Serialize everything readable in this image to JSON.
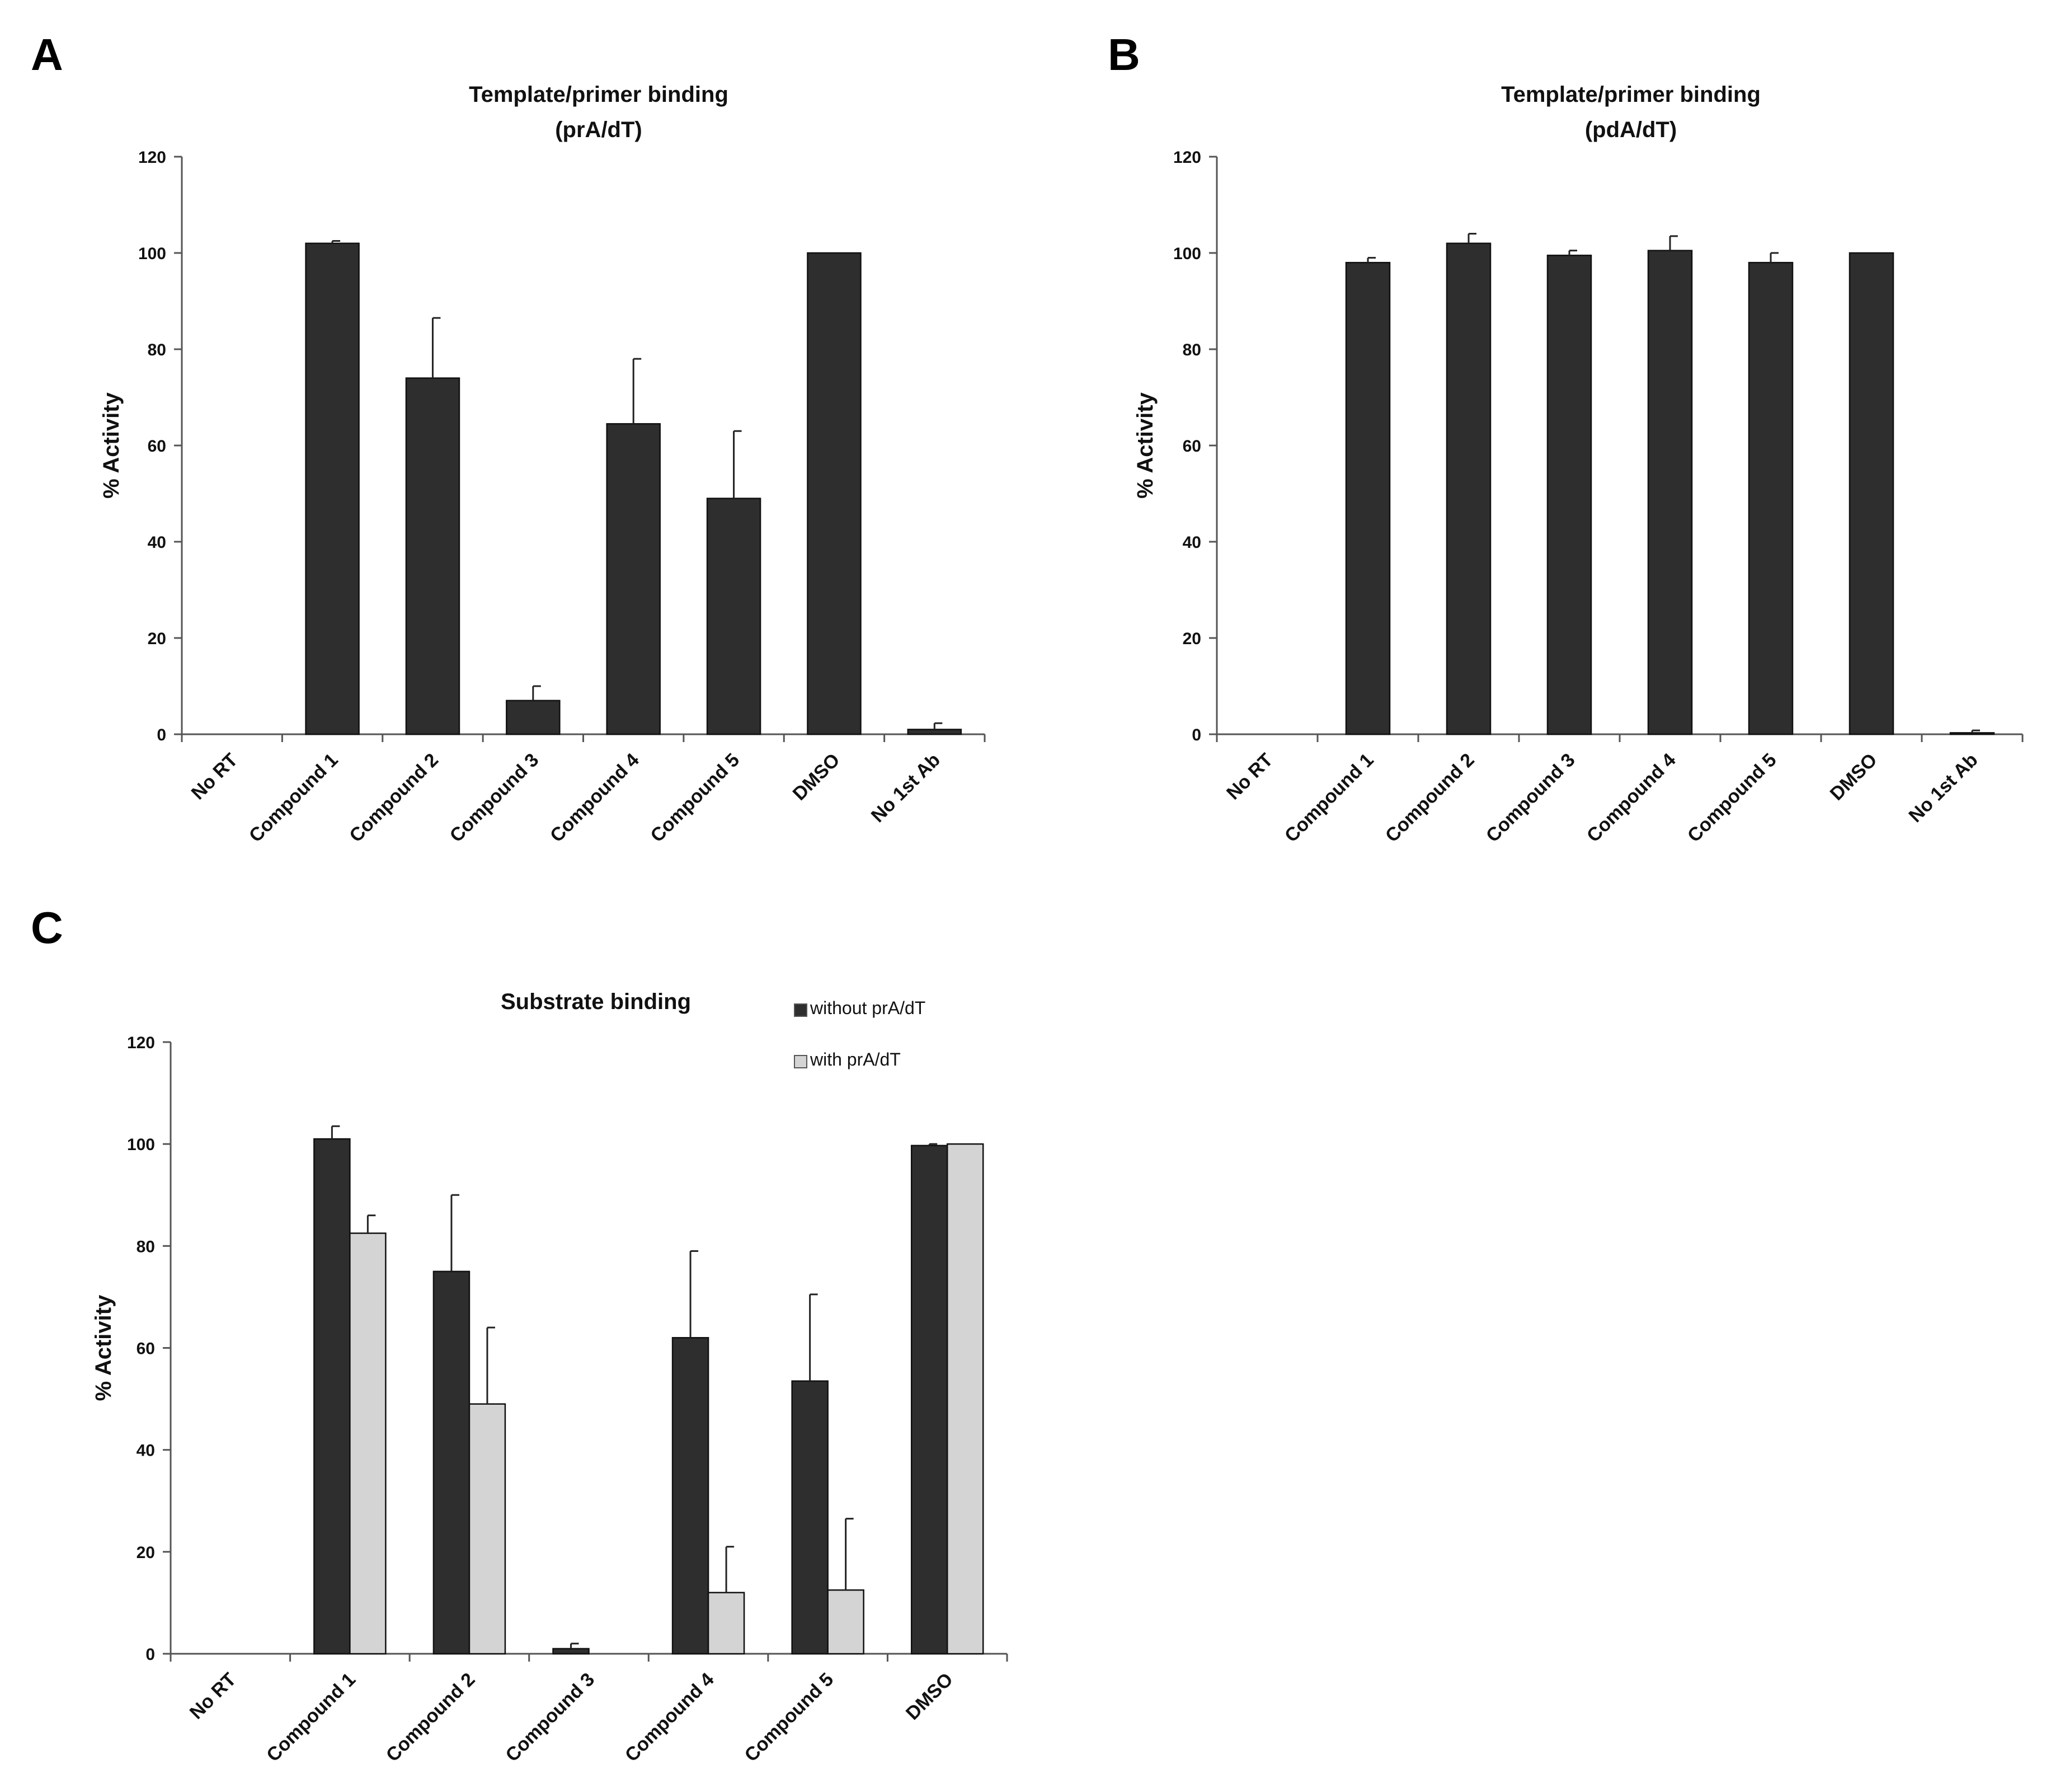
{
  "chart_data": [
    {
      "panel": "A",
      "type": "bar",
      "title": "Template/primer binding",
      "subtitle": "(prA/dT)",
      "xlabel": "",
      "ylabel": "% Activity",
      "ylim": [
        0,
        120
      ],
      "yticks": [
        0,
        20,
        40,
        60,
        80,
        100,
        120
      ],
      "grid": false,
      "categories": [
        "No RT",
        "Compound 1",
        "Compound 2",
        "Compound 3",
        "Compound 4",
        "Compound 5",
        "DMSO",
        "No 1st Ab"
      ],
      "series": [
        {
          "name": "activity",
          "color": "#2e2e2e",
          "values": [
            0,
            102,
            74,
            7,
            64.5,
            49,
            100,
            1
          ],
          "errors": [
            0,
            0.5,
            12.5,
            3,
            13.5,
            14,
            0,
            1.3
          ]
        }
      ]
    },
    {
      "panel": "B",
      "type": "bar",
      "title": "Template/primer binding",
      "subtitle": "(pdA/dT)",
      "xlabel": "",
      "ylabel": "% Activity",
      "ylim": [
        0,
        120
      ],
      "yticks": [
        0,
        20,
        40,
        60,
        80,
        100,
        120
      ],
      "grid": false,
      "categories": [
        "No RT",
        "Compound 1",
        "Compound 2",
        "Compound 3",
        "Compound 4",
        "Compound 5",
        "DMSO",
        "No 1st Ab"
      ],
      "series": [
        {
          "name": "activity",
          "color": "#2e2e2e",
          "values": [
            0,
            98,
            102,
            99.5,
            100.5,
            98,
            100,
            0.3
          ],
          "errors": [
            0,
            1,
            2,
            1,
            3,
            2,
            0,
            0.5
          ]
        }
      ]
    },
    {
      "panel": "C",
      "type": "bar",
      "title": "Substrate binding",
      "subtitle": "",
      "xlabel": "",
      "ylabel": "% Activity",
      "ylim": [
        0,
        120
      ],
      "yticks": [
        0,
        20,
        40,
        60,
        80,
        100,
        120
      ],
      "grid": false,
      "legend_position": "top-right",
      "categories": [
        "No RT",
        "Compound 1",
        "Compound 2",
        "Compound 3",
        "Compound 4",
        "Compound 5",
        "DMSO"
      ],
      "series": [
        {
          "name": "without prA/dT",
          "color": "#2e2e2e",
          "values": [
            0,
            101,
            75,
            1,
            62,
            53.5,
            99.7
          ],
          "errors": [
            0,
            2.5,
            15,
            1,
            17,
            17,
            0.3
          ]
        },
        {
          "name": "with prA/dT",
          "color": "#d4d4d4",
          "values": [
            0,
            82.5,
            49,
            0,
            12,
            12.5,
            100
          ],
          "errors": [
            0,
            3.5,
            15,
            0,
            9,
            14,
            0
          ]
        }
      ]
    }
  ]
}
